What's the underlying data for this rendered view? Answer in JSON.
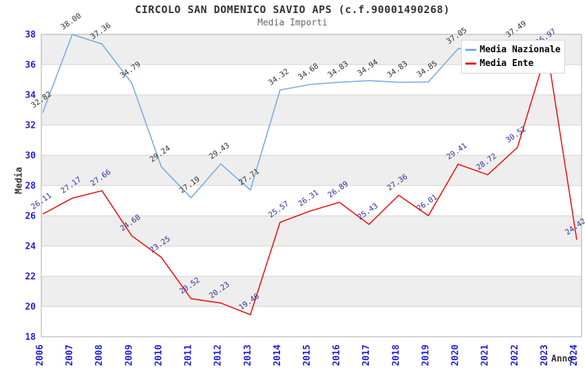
{
  "header": {
    "title": "CIRCOLO SAN DOMENICO SAVIO APS (c.f.90001490268)",
    "subtitle": "Media Importi"
  },
  "chart_data": {
    "type": "line",
    "title": "CIRCOLO SAN DOMENICO SAVIO APS (c.f.90001490268)",
    "subtitle": "Media Importi",
    "xlabel": "Anno",
    "ylabel": "Media",
    "ylim": [
      18,
      38
    ],
    "ytick_step": 2,
    "grid": "horizontal-bands-and-lines",
    "legend_position": "top-right-inside",
    "categories": [
      "2006",
      "2007",
      "2008",
      "2009",
      "2010",
      "2011",
      "2012",
      "2013",
      "2014",
      "2015",
      "2016",
      "2017",
      "2018",
      "2019",
      "2020",
      "2021",
      "2022",
      "2023",
      "2024"
    ],
    "series": [
      {
        "name": "Media Nazionale",
        "color": "#76ace0",
        "label_color": "#333333",
        "values": [
          32.82,
          38.0,
          37.36,
          34.79,
          29.24,
          27.19,
          29.43,
          27.71,
          34.32,
          34.68,
          34.83,
          34.94,
          34.83,
          34.85,
          37.05,
          37.25,
          37.49,
          null,
          null
        ],
        "labels": [
          "32.82",
          "38.00",
          "37.36",
          "34.79",
          "29.24",
          "27.19",
          "29.43",
          "27.71",
          "34.32",
          "34.68",
          "34.83",
          "34.94",
          "34.83",
          "34.85",
          "37.05",
          null,
          "37.49",
          null,
          null
        ]
      },
      {
        "name": "Media Ente",
        "color": "#ee1111",
        "label_color": "#333399",
        "values": [
          26.11,
          27.17,
          27.66,
          24.68,
          23.25,
          20.52,
          20.23,
          19.46,
          25.57,
          26.31,
          26.89,
          25.43,
          27.36,
          26.01,
          29.41,
          28.72,
          30.52,
          36.97,
          24.42
        ],
        "labels": [
          "26.11",
          "27.17",
          "27.66",
          "24.68",
          "23.25",
          "20.52",
          "20.23",
          "19.46",
          "25.57",
          "26.31",
          "26.89",
          "25.43",
          "27.36",
          "26.01",
          "29.41",
          "28.72",
          "30.52",
          "36.97",
          "24.42"
        ]
      }
    ],
    "colors": {
      "band": "#eeeeee",
      "gridline": "#d3d3d3",
      "frame": "#aaaaaa",
      "tick_label": "#2020d8",
      "title": "#333333",
      "subtitle": "#666666"
    }
  }
}
